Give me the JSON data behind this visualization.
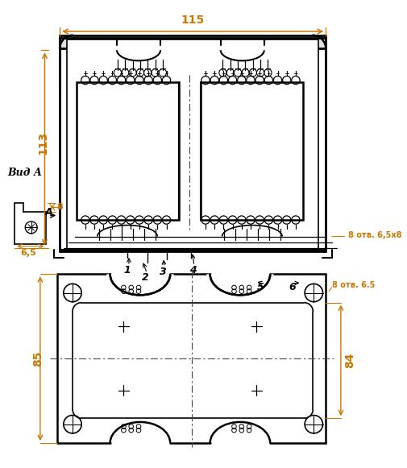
{
  "bg_color": "#ffffff",
  "line_color": "#000000",
  "dim_color": "#cc7700",
  "dim_115": "115",
  "dim_113": "113",
  "dim_8": "8",
  "dim_6_5": "6,5",
  "dim_8_otv": "8 отв. 6,5х8",
  "dim_8_otv2": "8 отв. 6.5",
  "dim_85": "85",
  "dim_84": "84",
  "label_vid_a": "Вид А",
  "label_a": "А"
}
